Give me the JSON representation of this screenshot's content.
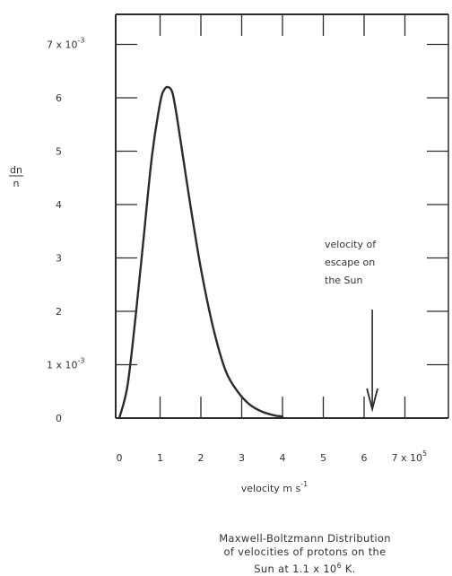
{
  "chart_data": {
    "type": "line",
    "ylabel_num": "dn",
    "ylabel_den": "n",
    "y_tick_labels": [
      {
        "value": 0,
        "text": "0"
      },
      {
        "value": 1,
        "text": "1 x 10",
        "sup": "-3"
      },
      {
        "value": 2,
        "text": "2"
      },
      {
        "value": 3,
        "text": "3"
      },
      {
        "value": 4,
        "text": "4"
      },
      {
        "value": 5,
        "text": "5"
      },
      {
        "value": 6,
        "text": "6"
      },
      {
        "value": 7,
        "text": "7 x 10",
        "sup": "-3"
      }
    ],
    "x_tick_labels": [
      {
        "value": 0,
        "text": "0"
      },
      {
        "value": 1,
        "text": "1"
      },
      {
        "value": 2,
        "text": "2"
      },
      {
        "value": 3,
        "text": "3"
      },
      {
        "value": 4,
        "text": "4"
      },
      {
        "value": 5,
        "text": "5"
      },
      {
        "value": 6,
        "text": "6"
      },
      {
        "value": 7,
        "text": "7 x 10",
        "sup": "5"
      }
    ],
    "xlabel": "velocity  m s",
    "xlabel_sup": "-1",
    "xlim": [
      0,
      7.8
    ],
    "ylim": [
      0,
      7.5
    ],
    "x_unit": "x 10^5 m s^-1",
    "y_unit": "x 10^-3",
    "series": [
      {
        "x": [
          0,
          0.2,
          0.4,
          0.6,
          0.8,
          1.0,
          1.1,
          1.2,
          1.3,
          1.4,
          1.5,
          1.7,
          2.0,
          2.3,
          2.6,
          2.9,
          3.2,
          3.5,
          3.8,
          4.0
        ],
        "y": [
          0,
          0.6,
          1.9,
          3.4,
          4.9,
          5.9,
          6.15,
          6.2,
          6.1,
          5.7,
          5.2,
          4.2,
          2.8,
          1.7,
          0.9,
          0.5,
          0.25,
          0.12,
          0.05,
          0.03
        ]
      }
    ],
    "annotation": {
      "lines": [
        "velocity of",
        "escape on",
        "the Sun"
      ],
      "arrow_x": 6.2
    },
    "grid": false,
    "line_color": "#2b2b2b"
  },
  "caption": {
    "line1": "Maxwell-Boltzmann Distribution",
    "line2": "of velocities of protons on the",
    "line3_pre": "Sun at 1.1 x 10",
    "line3_sup": "6",
    "line3_post": " K."
  }
}
